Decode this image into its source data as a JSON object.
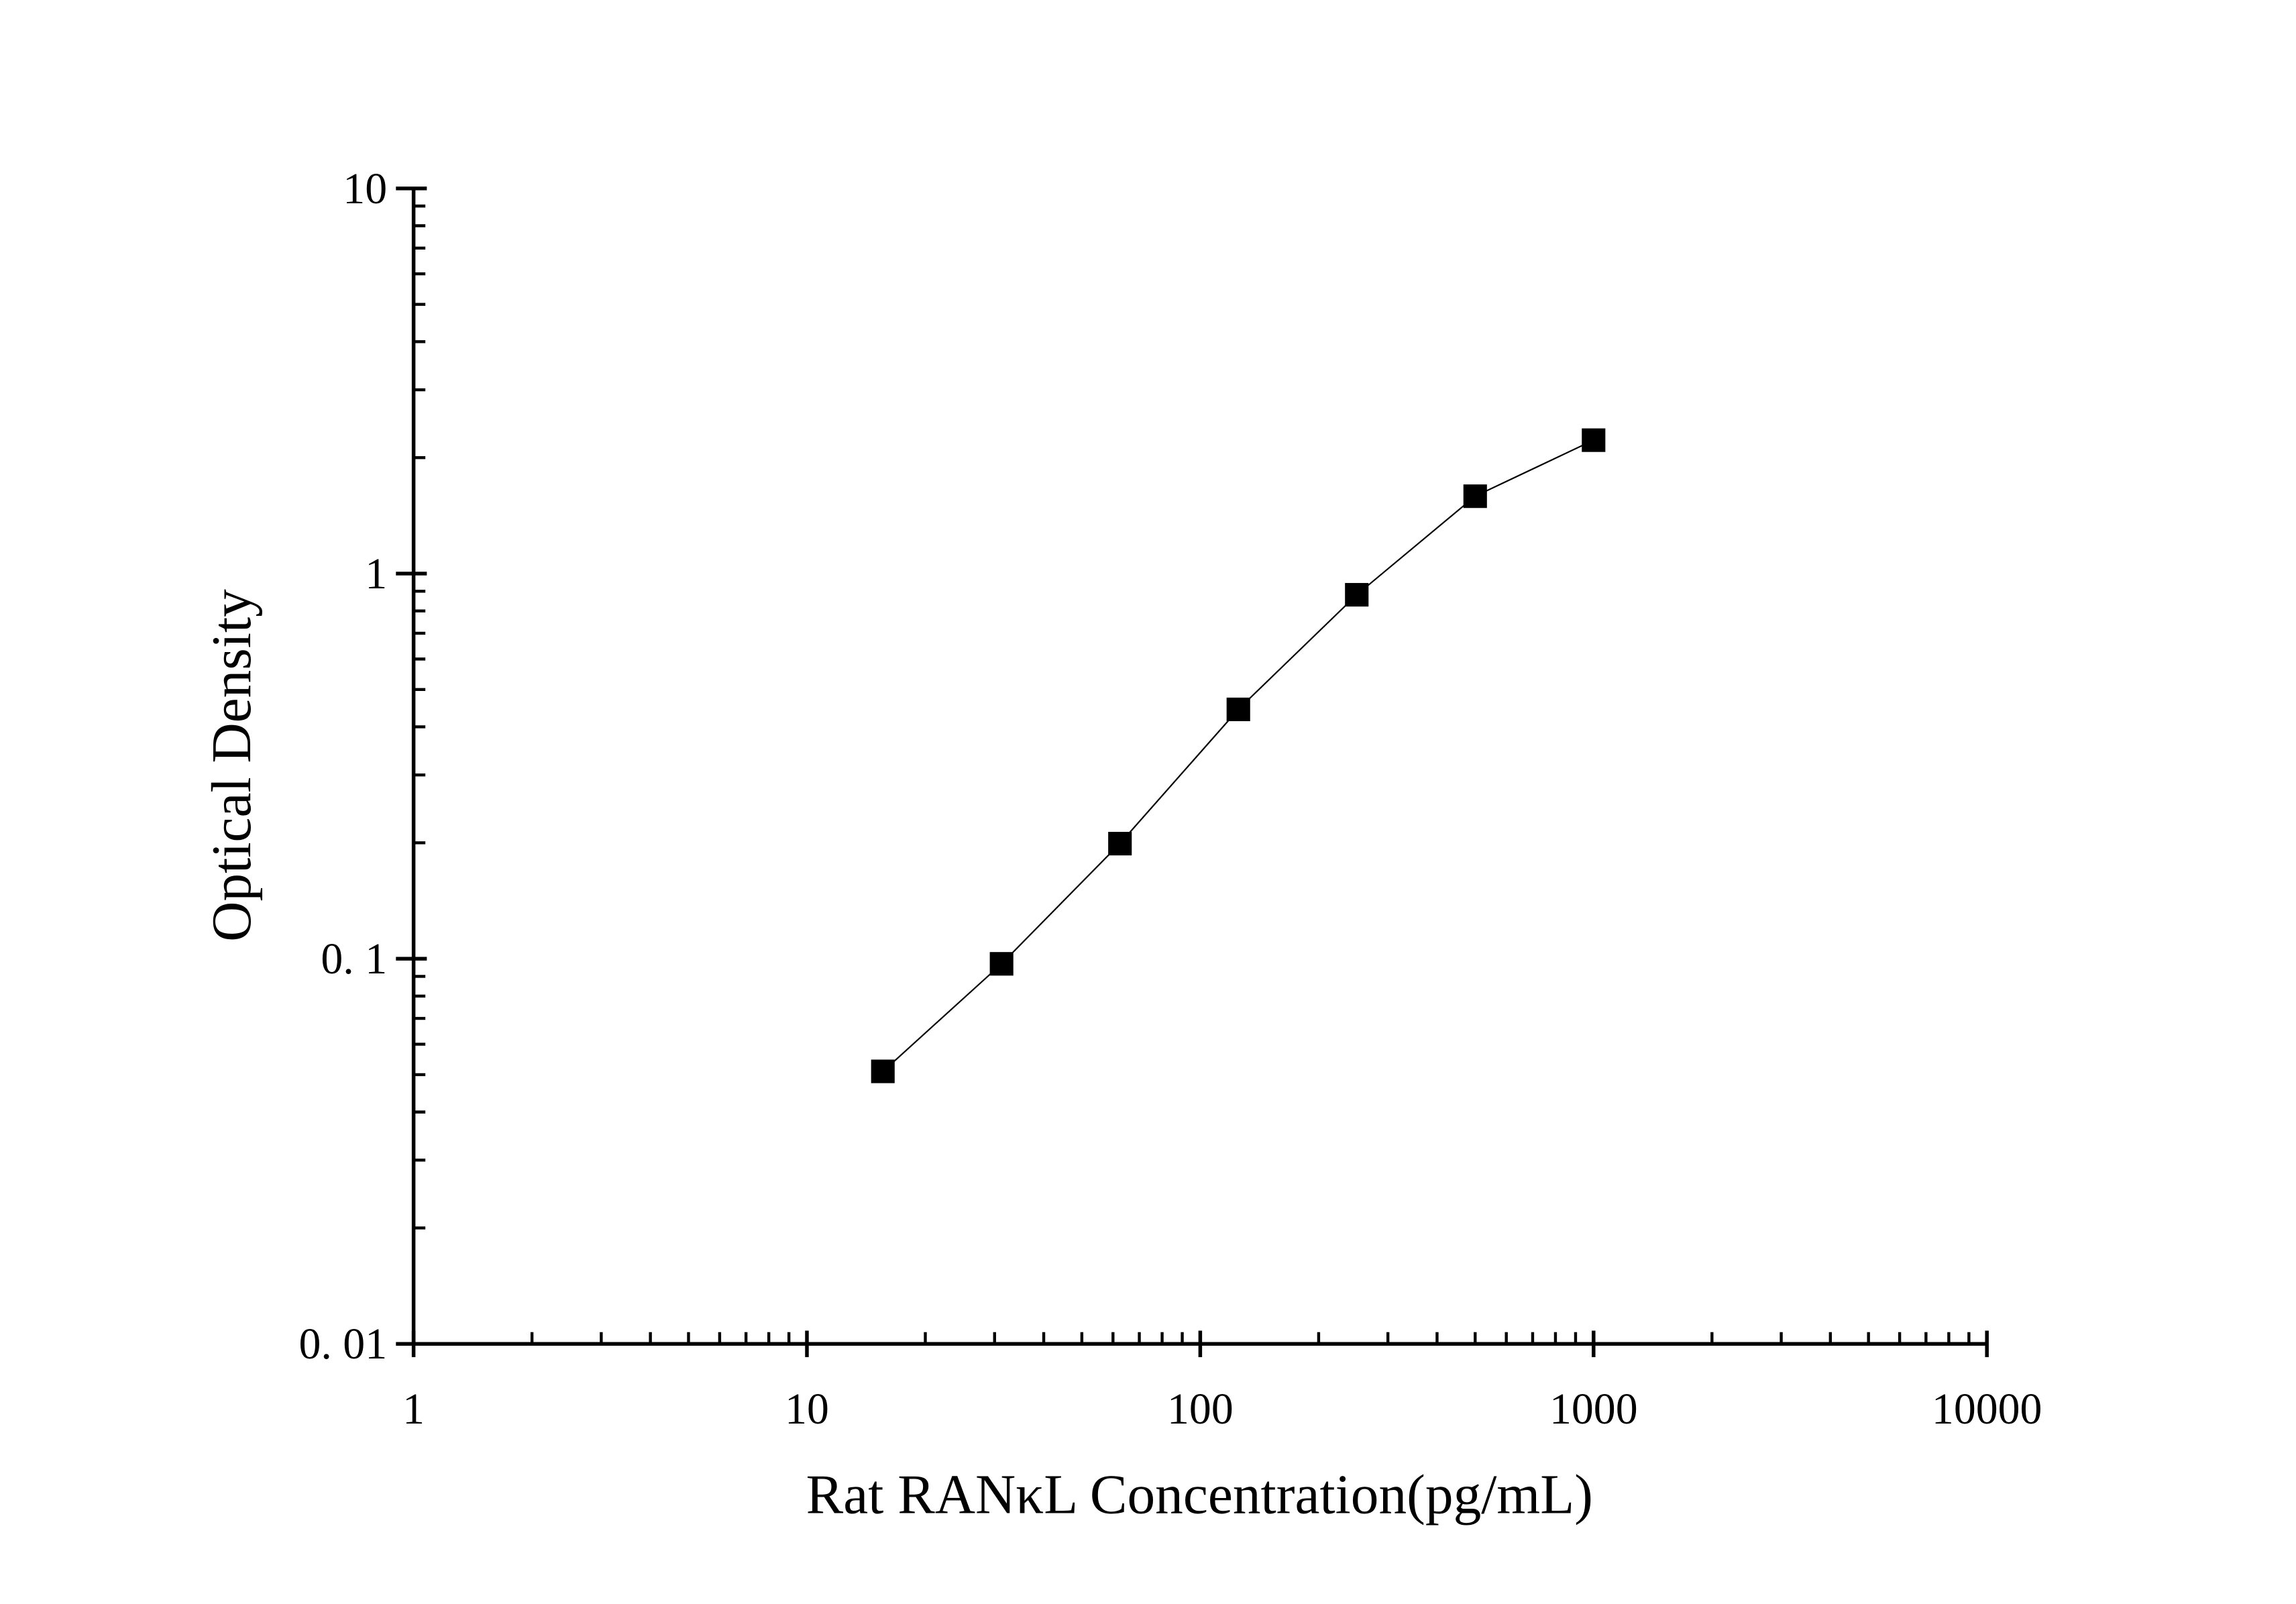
{
  "chart_data": {
    "type": "line",
    "title": "",
    "xlabel": "Rat RANκL Concentration(pg/mL)",
    "ylabel": "Optical Density",
    "xscale": "log",
    "yscale": "log",
    "xlim": [
      1,
      10000
    ],
    "ylim": [
      0.01,
      10
    ],
    "x_ticks": [
      1,
      10,
      100,
      1000,
      10000
    ],
    "x_tick_labels": [
      "1",
      "10",
      "100",
      "1000",
      "10000"
    ],
    "y_ticks": [
      0.01,
      0.1,
      1,
      10
    ],
    "y_tick_labels": [
      "0. 01",
      "0. 1",
      "1",
      "10"
    ],
    "grid": false,
    "marker": "square",
    "color": "#000000",
    "series": [
      {
        "x": [
          15.6,
          31.25,
          62.5,
          125,
          250,
          500,
          1000
        ],
        "y": [
          0.051,
          0.097,
          0.199,
          0.444,
          0.881,
          1.588,
          2.22
        ]
      }
    ]
  }
}
